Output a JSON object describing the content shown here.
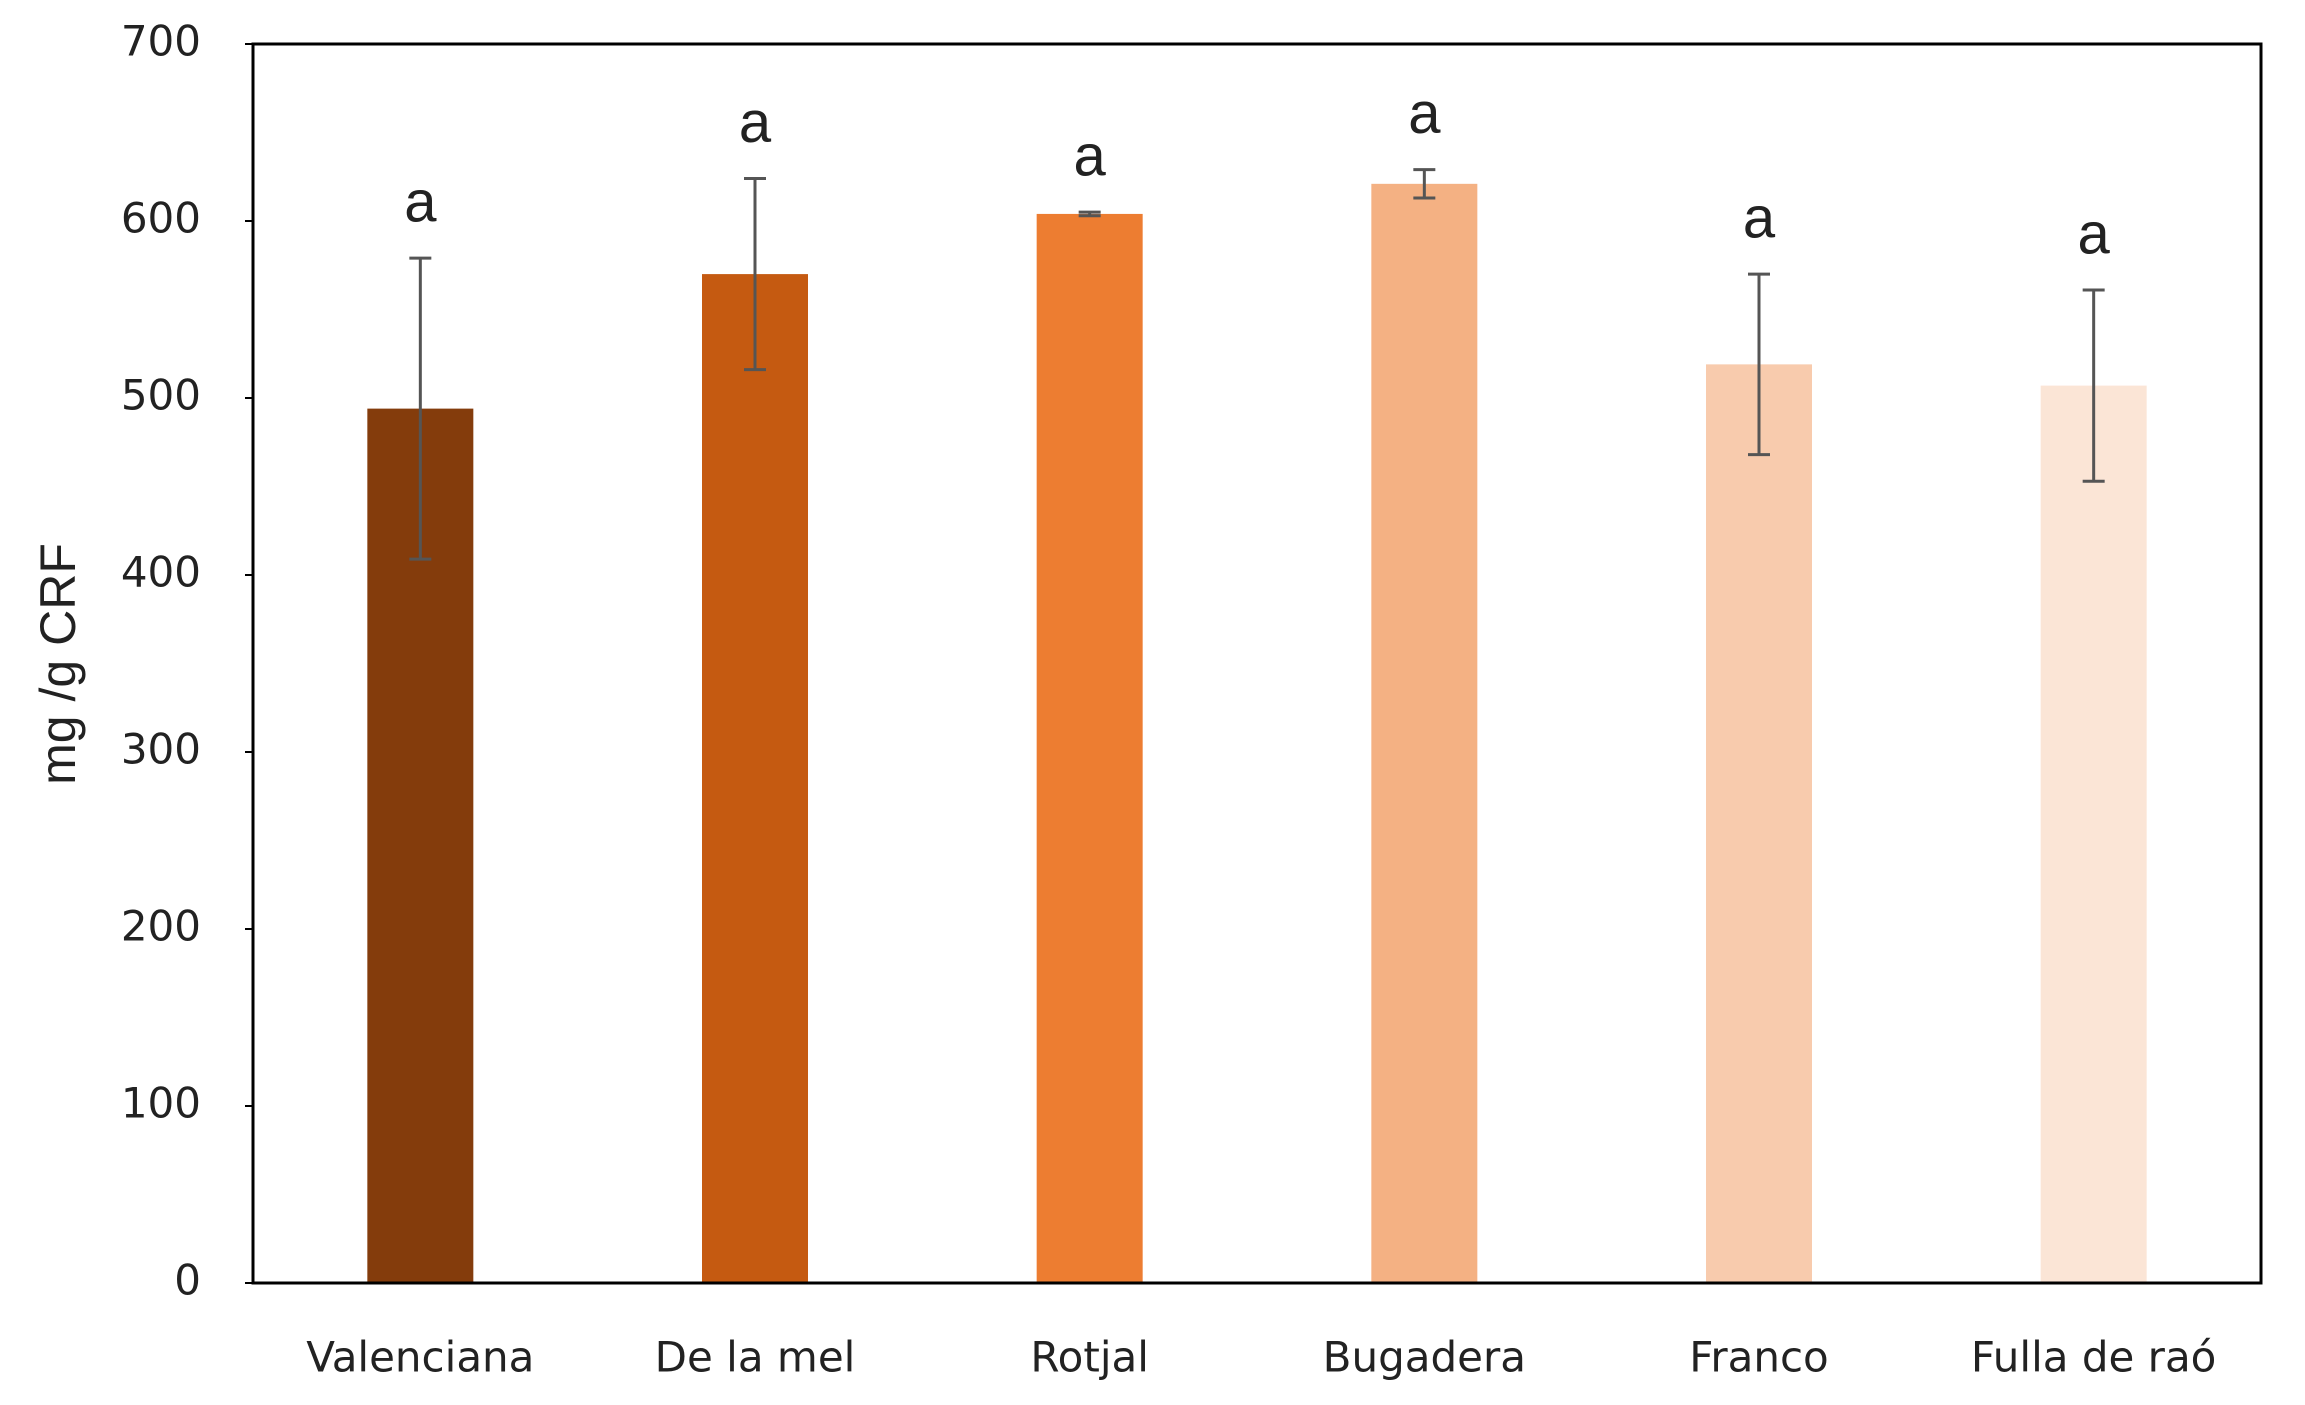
{
  "chart_data": {
    "type": "bar",
    "y_label": "mg /g CRF",
    "categories": [
      "Valenciana",
      "De la mel",
      "Rotjal",
      "Bugadera",
      "Franco",
      "Fulla de raó"
    ],
    "values": [
      494,
      570,
      604,
      621,
      519,
      507
    ],
    "errors": [
      85,
      54,
      1,
      8,
      51,
      54
    ],
    "letters": [
      "a",
      "a",
      "a",
      "a",
      "a",
      "a"
    ],
    "colors": [
      "#843c0c",
      "#c55a11",
      "#ed7d31",
      "#f4b183",
      "#f8cbad",
      "#fbe5d6"
    ],
    "ylim": [
      0,
      700
    ],
    "yticks": [
      0,
      100,
      200,
      300,
      400,
      500,
      600,
      700
    ],
    "grid": false
  }
}
